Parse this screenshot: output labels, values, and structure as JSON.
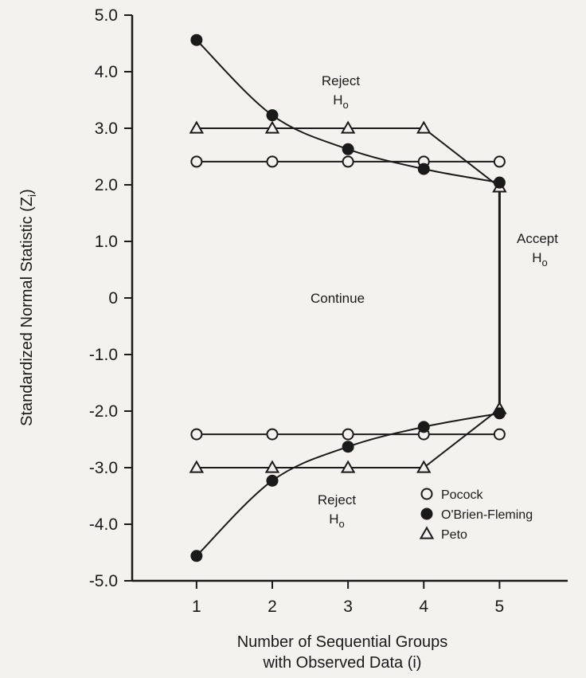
{
  "chart_data": {
    "type": "line",
    "title": "",
    "xlabel_line1": "Number of Sequential Groups",
    "xlabel_line2": "with Observed Data (i)",
    "ylabel": "Standardized Normal Statistic (Z",
    "ylabel_sub": "i",
    "ylabel_close": ")",
    "x": [
      1,
      2,
      3,
      4,
      5
    ],
    "x_tick_labels": [
      "1",
      "2",
      "3",
      "4",
      "5"
    ],
    "xlim": [
      0.15,
      5.9
    ],
    "ylim": [
      -5.0,
      5.0
    ],
    "y_ticks": [
      5.0,
      4.0,
      3.0,
      2.0,
      1.0,
      0,
      -1.0,
      -2.0,
      -3.0,
      -4.0,
      -5.0
    ],
    "y_tick_labels": [
      "5.0",
      "4.0",
      "3.0",
      "2.0",
      "1.0",
      "0",
      "-1.0",
      "-2.0",
      "-3.0",
      "-4.0",
      "-5.0"
    ],
    "grid": false,
    "legend_position": "bottom-right",
    "series": [
      {
        "name": "Pocock",
        "marker": "open-circle",
        "upper": [
          2.41,
          2.41,
          2.41,
          2.41,
          2.41
        ],
        "lower": [
          -2.41,
          -2.41,
          -2.41,
          -2.41,
          -2.41
        ]
      },
      {
        "name": "O'Brien-Fleming",
        "marker": "filled-circle",
        "upper": [
          4.56,
          3.23,
          2.63,
          2.28,
          2.04
        ],
        "lower": [
          -4.56,
          -3.23,
          -2.63,
          -2.28,
          -2.04
        ]
      },
      {
        "name": "Peto",
        "marker": "open-triangle",
        "upper": [
          3.0,
          3.0,
          3.0,
          3.0,
          1.96
        ],
        "lower": [
          -3.0,
          -3.0,
          -3.0,
          -3.0,
          -1.96
        ]
      }
    ],
    "annotations": {
      "reject_upper": "Reject",
      "reject_lower": "Reject",
      "h_main": "H",
      "h_sub": "o",
      "accept": "Accept",
      "continue": "Continue"
    }
  }
}
